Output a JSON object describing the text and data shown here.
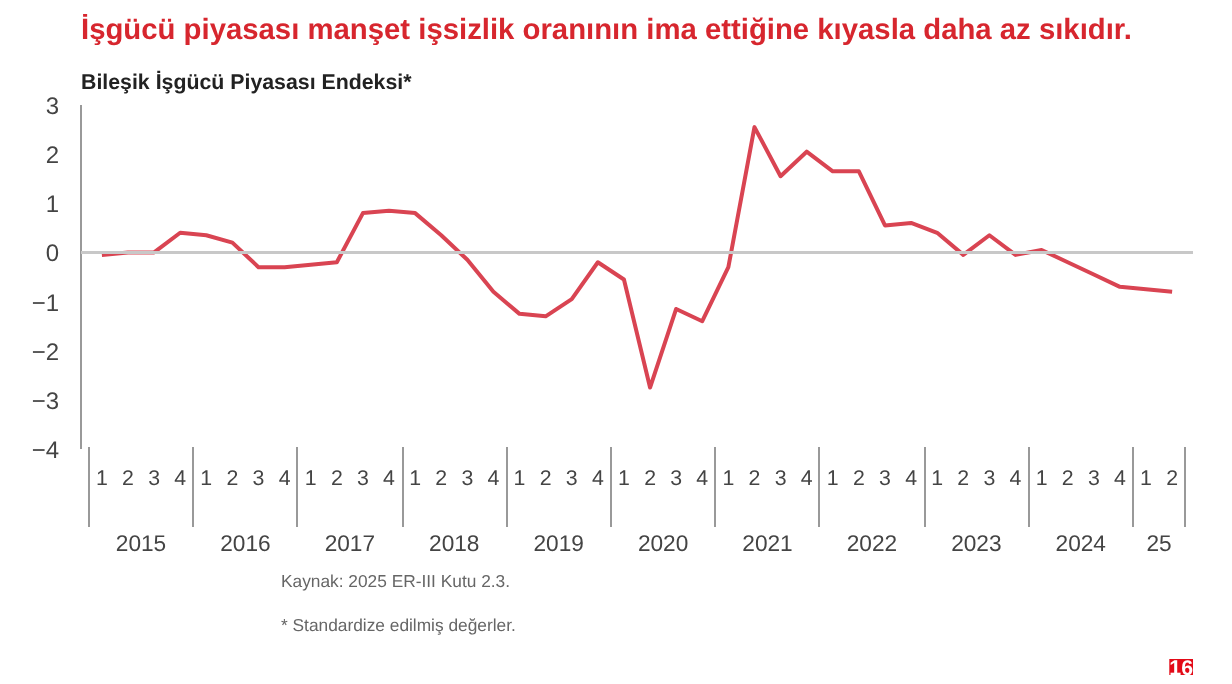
{
  "chart_data": {
    "type": "line",
    "title": "İşgücü piyasası manşet işsizlik oranının ima ettiğine kıyasla daha az sıkıdır.",
    "subtitle": "Bileşik İşgücü Piyasası Endeksi*",
    "categories": [
      "1",
      "2",
      "3",
      "4",
      "1",
      "2",
      "3",
      "4",
      "1",
      "2",
      "3",
      "4",
      "1",
      "2",
      "3",
      "4",
      "1",
      "2",
      "3",
      "4",
      "1",
      "2",
      "3",
      "4",
      "1",
      "2",
      "3",
      "4",
      "1",
      "2",
      "3",
      "4",
      "1",
      "2",
      "3",
      "4",
      "1",
      "2",
      "3",
      "4",
      "1",
      "2"
    ],
    "series": [
      {
        "color": "#d94452",
        "values": [
          -0.05,
          0.0,
          0.0,
          0.4,
          0.35,
          0.2,
          -0.3,
          -0.3,
          -0.25,
          -0.2,
          0.8,
          0.85,
          0.8,
          0.35,
          -0.15,
          -0.8,
          -1.25,
          -1.3,
          -0.95,
          -0.2,
          -0.55,
          -2.75,
          -1.15,
          -1.4,
          -0.3,
          2.55,
          1.55,
          2.05,
          1.65,
          1.65,
          0.55,
          0.6,
          0.4,
          -0.05,
          0.35,
          -0.05,
          0.05,
          -0.2,
          -0.45,
          -0.7,
          -0.75,
          -0.8
        ]
      }
    ],
    "ylim": [
      -4,
      3
    ],
    "yticks": [
      -4,
      -3,
      -2,
      -1,
      0,
      1,
      2,
      3
    ],
    "grid": false,
    "marker": "none",
    "line_style": "solid",
    "ref_lines": [
      {
        "axis": "y",
        "value": 0,
        "color": "#c8c8c8"
      }
    ],
    "annotations": [
      "2015",
      "2016",
      "2017",
      "2018",
      "2019",
      "2020",
      "2021",
      "2022",
      "2023",
      "2024",
      "25",
      "Kaynak: 2025 ER-III Kutu 2.3.",
      "* Standardize edilmiş değerler.",
      "16"
    ]
  }
}
